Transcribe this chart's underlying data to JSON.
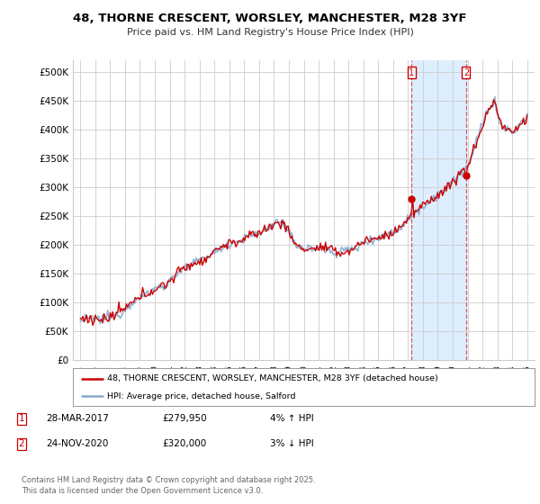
{
  "title_line1": "48, THORNE CRESCENT, WORSLEY, MANCHESTER, M28 3YF",
  "title_line2": "Price paid vs. HM Land Registry's House Price Index (HPI)",
  "ylim": [
    0,
    520000
  ],
  "yticks": [
    0,
    50000,
    100000,
    150000,
    200000,
    250000,
    300000,
    350000,
    400000,
    450000,
    500000
  ],
  "ytick_labels": [
    "£0",
    "£50K",
    "£100K",
    "£150K",
    "£200K",
    "£250K",
    "£300K",
    "£350K",
    "£400K",
    "£450K",
    "£500K"
  ],
  "background_color": "#ffffff",
  "plot_bg_color": "#ffffff",
  "grid_color": "#cccccc",
  "hpi_color": "#88aacc",
  "price_color": "#cc0000",
  "shade_color": "#ddeeff",
  "marker1_x": 2017.24,
  "marker1_price": 279950,
  "marker2_x": 2020.9,
  "marker2_price": 320000,
  "legend_line1": "48, THORNE CRESCENT, WORSLEY, MANCHESTER, M28 3YF (detached house)",
  "legend_line2": "HPI: Average price, detached house, Salford",
  "footer": "Contains HM Land Registry data © Crown copyright and database right 2025.\nThis data is licensed under the Open Government Licence v3.0.",
  "xmin": 1994.5,
  "xmax": 2025.5
}
